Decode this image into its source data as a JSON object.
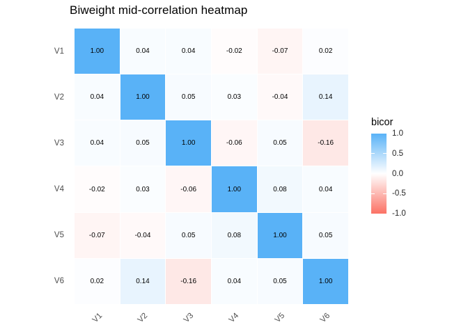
{
  "title": "Biweight mid-correlation heatmap",
  "legend": {
    "title": "bicor",
    "tick_labels": [
      "1.0",
      "0.5",
      "0.0",
      "-0.5",
      "-1.0"
    ],
    "high_color": "#59B2F7",
    "mid_color": "#FFFFFF",
    "low_color": "#FB7164"
  },
  "chart_data": {
    "type": "heatmap",
    "title": "Biweight mid-correlation heatmap",
    "x_categories": [
      "V1",
      "V2",
      "V3",
      "V4",
      "V5",
      "V6"
    ],
    "y_categories": [
      "V1",
      "V2",
      "V3",
      "V4",
      "V5",
      "V6"
    ],
    "matrix": [
      [
        1.0,
        0.04,
        0.04,
        -0.02,
        -0.07,
        0.02
      ],
      [
        0.04,
        1.0,
        0.05,
        0.03,
        -0.04,
        0.14
      ],
      [
        0.04,
        0.05,
        1.0,
        -0.06,
        0.05,
        -0.16
      ],
      [
        -0.02,
        0.03,
        -0.06,
        1.0,
        0.08,
        0.04
      ],
      [
        -0.07,
        -0.04,
        0.05,
        0.08,
        1.0,
        0.05
      ],
      [
        0.02,
        0.14,
        -0.16,
        0.04,
        0.05,
        1.0
      ]
    ],
    "value_decimals": 2,
    "colorbar": {
      "label": "bicor",
      "range": [
        -1.0,
        1.0
      ],
      "ticks": [
        1.0,
        0.5,
        0.0,
        -0.5,
        -1.0
      ],
      "high_color": "#59B2F7",
      "mid_color": "#FFFFFF",
      "low_color": "#FB7164"
    },
    "grid": false,
    "legend_position": "right"
  }
}
